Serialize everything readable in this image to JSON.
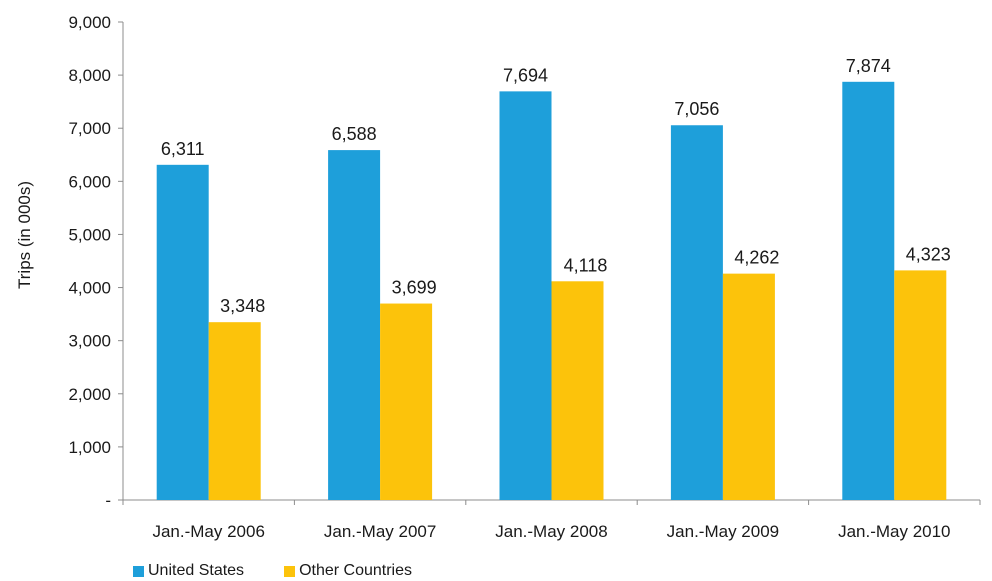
{
  "colors": {
    "united_states": "#1e9fda",
    "other_countries": "#fcc30b"
  },
  "chart_data": {
    "type": "bar",
    "ylabel": "Trips (in 000s)",
    "xlabel": "",
    "ylim": [
      0,
      9000
    ],
    "yticks": [
      0,
      1000,
      2000,
      3000,
      4000,
      5000,
      6000,
      7000,
      8000,
      9000
    ],
    "ytick_labels": [
      "-",
      "1,000",
      "2,000",
      "3,000",
      "4,000",
      "5,000",
      "6,000",
      "7,000",
      "8,000",
      "9,000"
    ],
    "categories": [
      "Jan.-May 2006",
      "Jan.-May 2007",
      "Jan.-May 2008",
      "Jan.-May 2009",
      "Jan.-May 2010"
    ],
    "series": [
      {
        "name": "United States",
        "values": [
          6311,
          6588,
          7694,
          7056,
          7874
        ],
        "labels": [
          "6,311",
          "6,588",
          "7,694",
          "7,056",
          "7,874"
        ]
      },
      {
        "name": "Other Countries",
        "values": [
          3348,
          3699,
          4118,
          4262,
          4323
        ],
        "labels": [
          "3,348",
          "3,699",
          "4,118",
          "4,262",
          "4,323"
        ]
      }
    ],
    "grid": false,
    "legend": "bottom-left"
  }
}
